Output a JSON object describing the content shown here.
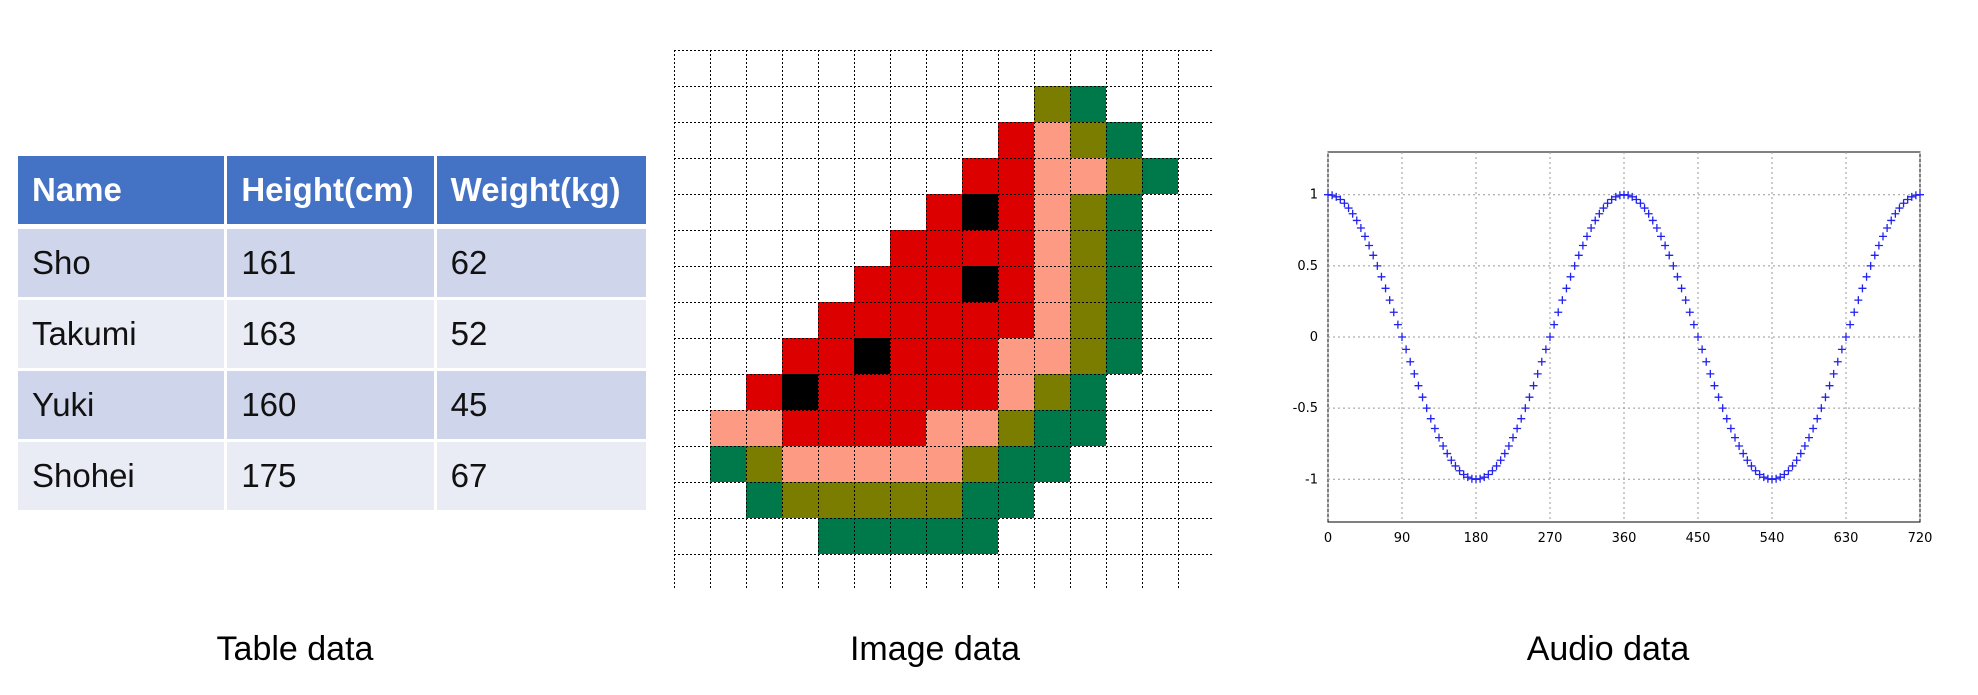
{
  "table": {
    "headers": [
      "Name",
      "Height(cm)",
      "Weight(kg)"
    ],
    "rows": [
      [
        "Sho",
        "161",
        "62"
      ],
      [
        "Takumi",
        "163",
        "52"
      ],
      [
        "Yuki",
        "160",
        "45"
      ],
      [
        "Shohei",
        "175",
        "67"
      ]
    ],
    "caption": "Table data"
  },
  "image": {
    "caption": "Image data",
    "palette": {
      "R": "#dd0000",
      "P": "#fc9a84",
      "O": "#7a7d00",
      "G": "#00794a",
      "K": "#000000",
      "W": "#ffffff"
    },
    "grid_lines": "#000000",
    "pixels": [
      "...............",
      "..........OG...",
      ".........RPOG..",
      "........RRPPOG.",
      ".......RKRPOG.",
      "......RRRRPOG.",
      ".....RRRKRPOG.",
      "....RRRRRRPOG.",
      "...RRKRRRPPOG.",
      "..RKRRRRRPOG..",
      ".PPRRRRPPOGG..",
      ".GOPPPPPOGG...",
      "..GOOOOOGG....",
      "....GGGGG.....",
      "..............."
    ]
  },
  "chart_data": {
    "type": "scatter",
    "caption": "Audio data",
    "title": "",
    "xlabel": "",
    "ylabel": "",
    "function": "cos(x degrees)",
    "x_step": 5,
    "xlim": [
      0,
      720
    ],
    "ylim": [
      -1.3,
      1.3
    ],
    "x_ticks": [
      "0",
      "90",
      "180",
      "270",
      "360",
      "450",
      "540",
      "630",
      "720"
    ],
    "y_ticks": [
      "1",
      "0.5",
      "0",
      "-0.5",
      "-1"
    ],
    "y_tick_values": [
      1,
      0.5,
      0,
      -0.5,
      -1
    ],
    "marker": "+",
    "marker_color": "#2222ee",
    "grid": true,
    "x": [
      0,
      5,
      10,
      15,
      20,
      25,
      30,
      35,
      40,
      45,
      50,
      55,
      60,
      65,
      70,
      75,
      80,
      85,
      90,
      95,
      100,
      105,
      110,
      115,
      120,
      125,
      130,
      135,
      140,
      145,
      150,
      155,
      160,
      165,
      170,
      175,
      180,
      185,
      190,
      195,
      200,
      205,
      210,
      215,
      220,
      225,
      230,
      235,
      240,
      245,
      250,
      255,
      260,
      265,
      270,
      275,
      280,
      285,
      290,
      295,
      300,
      305,
      310,
      315,
      320,
      325,
      330,
      335,
      340,
      345,
      350,
      355,
      360,
      365,
      370,
      375,
      380,
      385,
      390,
      395,
      400,
      405,
      410,
      415,
      420,
      425,
      430,
      435,
      440,
      445,
      450,
      455,
      460,
      465,
      470,
      475,
      480,
      485,
      490,
      495,
      500,
      505,
      510,
      515,
      520,
      525,
      530,
      535,
      540,
      545,
      550,
      555,
      560,
      565,
      570,
      575,
      580,
      585,
      590,
      595,
      600,
      605,
      610,
      615,
      620,
      625,
      630,
      635,
      640,
      645,
      650,
      655,
      660,
      665,
      670,
      675,
      680,
      685,
      690,
      695,
      700,
      705,
      710,
      715,
      720
    ],
    "y": [
      1.0,
      0.996,
      0.985,
      0.966,
      0.94,
      0.906,
      0.866,
      0.819,
      0.766,
      0.707,
      0.643,
      0.574,
      0.5,
      0.423,
      0.342,
      0.259,
      0.174,
      0.087,
      0.0,
      -0.087,
      -0.174,
      -0.259,
      -0.342,
      -0.423,
      -0.5,
      -0.574,
      -0.643,
      -0.707,
      -0.766,
      -0.819,
      -0.866,
      -0.906,
      -0.94,
      -0.966,
      -0.985,
      -0.996,
      -1.0,
      -0.996,
      -0.985,
      -0.966,
      -0.94,
      -0.906,
      -0.866,
      -0.819,
      -0.766,
      -0.707,
      -0.643,
      -0.574,
      -0.5,
      -0.423,
      -0.342,
      -0.259,
      -0.174,
      -0.087,
      0.0,
      0.087,
      0.174,
      0.259,
      0.342,
      0.423,
      0.5,
      0.574,
      0.643,
      0.707,
      0.766,
      0.819,
      0.866,
      0.906,
      0.94,
      0.966,
      0.985,
      0.996,
      1.0,
      0.996,
      0.985,
      0.966,
      0.94,
      0.906,
      0.866,
      0.819,
      0.766,
      0.707,
      0.643,
      0.574,
      0.5,
      0.423,
      0.342,
      0.259,
      0.174,
      0.087,
      0.0,
      -0.087,
      -0.174,
      -0.259,
      -0.342,
      -0.423,
      -0.5,
      -0.574,
      -0.643,
      -0.707,
      -0.766,
      -0.819,
      -0.866,
      -0.906,
      -0.94,
      -0.966,
      -0.985,
      -0.996,
      -1.0,
      -0.996,
      -0.985,
      -0.966,
      -0.94,
      -0.906,
      -0.866,
      -0.819,
      -0.766,
      -0.707,
      -0.643,
      -0.574,
      -0.5,
      -0.423,
      -0.342,
      -0.259,
      -0.174,
      -0.087,
      0.0,
      0.087,
      0.174,
      0.259,
      0.342,
      0.423,
      0.5,
      0.574,
      0.643,
      0.707,
      0.766,
      0.819,
      0.866,
      0.906,
      0.94,
      0.966,
      0.985,
      0.996,
      1.0
    ]
  }
}
